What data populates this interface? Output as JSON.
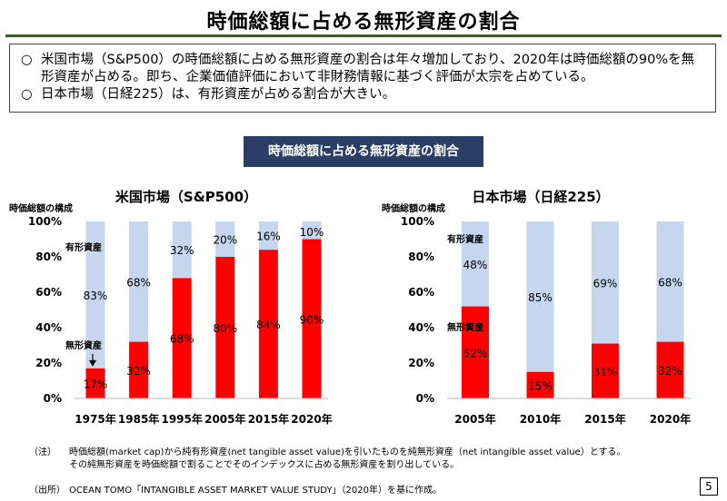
{
  "page": {
    "title": "時価総額に占める無形資産の割合",
    "summary": [
      {
        "bullet": "○",
        "text": "米国市場（S&P500）の時価総額に占める無形資産の割合は年々増加しており、2020年は時価総額の90%を無形資産が占める。即ち、企業価値評価において非財務情報に基づく評価が太宗を占めている。"
      },
      {
        "bullet": "○",
        "text": "日本市場（日経225）は、有形資産が占める割合が大きい。"
      }
    ],
    "chart_banner": "時価総額に占める無形資産の割合",
    "notes": {
      "note_label": "（注）",
      "note_lines": [
        "時価総額(market cap)から純有形資産(net tangible asset value)を引いたものを純無形資産（net intangible asset value）とする。",
        "その純無形資産を時価総額で割ることでそのインデックスに占める無形資産を割り出している。"
      ],
      "source_label": "（出所）",
      "source_text": "OCEAN TOMO「INTANGIBLE ASSET MARKET VALUE STUDY」（2020年）を基に作成。"
    },
    "page_number": "5"
  },
  "colors": {
    "intangible": "#ff0000",
    "tangible": "#c5d6ee",
    "title_rule": "#3d5c2a",
    "banner": "#2b3f66"
  },
  "chart_data": [
    {
      "type": "bar",
      "stacked": true,
      "title": "米国市場（S&P500）",
      "ylabel": "時価総額の構成",
      "ylim": [
        0,
        100
      ],
      "yticks": [
        "0%",
        "20%",
        "40%",
        "60%",
        "80%",
        "100%"
      ],
      "categories": [
        "1975年",
        "1985年",
        "1995年",
        "2005年",
        "2015年",
        "2020年"
      ],
      "series": [
        {
          "name": "無形資産",
          "values": [
            17,
            32,
            68,
            80,
            84,
            90
          ],
          "labels": [
            "17%",
            "32%",
            "68%",
            "80%",
            "84%",
            "90%"
          ]
        },
        {
          "name": "有形資産",
          "values": [
            83,
            68,
            32,
            20,
            16,
            10
          ],
          "labels": [
            "83%",
            "68%",
            "32%",
            "20%",
            "16%",
            "10%"
          ]
        }
      ],
      "legend_placement": "inside-left"
    },
    {
      "type": "bar",
      "stacked": true,
      "title": "日本市場（日経225）",
      "ylabel": "時価総額の構成",
      "ylim": [
        0,
        100
      ],
      "yticks": [
        "0%",
        "20%",
        "40%",
        "60%",
        "80%",
        "100%"
      ],
      "categories": [
        "2005年",
        "2010年",
        "2015年",
        "2020年"
      ],
      "series": [
        {
          "name": "無形資産",
          "values": [
            52,
            15,
            31,
            32
          ],
          "labels": [
            "52%",
            "15%",
            "31%",
            "32%"
          ]
        },
        {
          "name": "有形資産",
          "values": [
            48,
            85,
            69,
            68
          ],
          "labels": [
            "48%",
            "85%",
            "69%",
            "68%"
          ]
        }
      ],
      "legend_placement": "inside-left"
    }
  ]
}
